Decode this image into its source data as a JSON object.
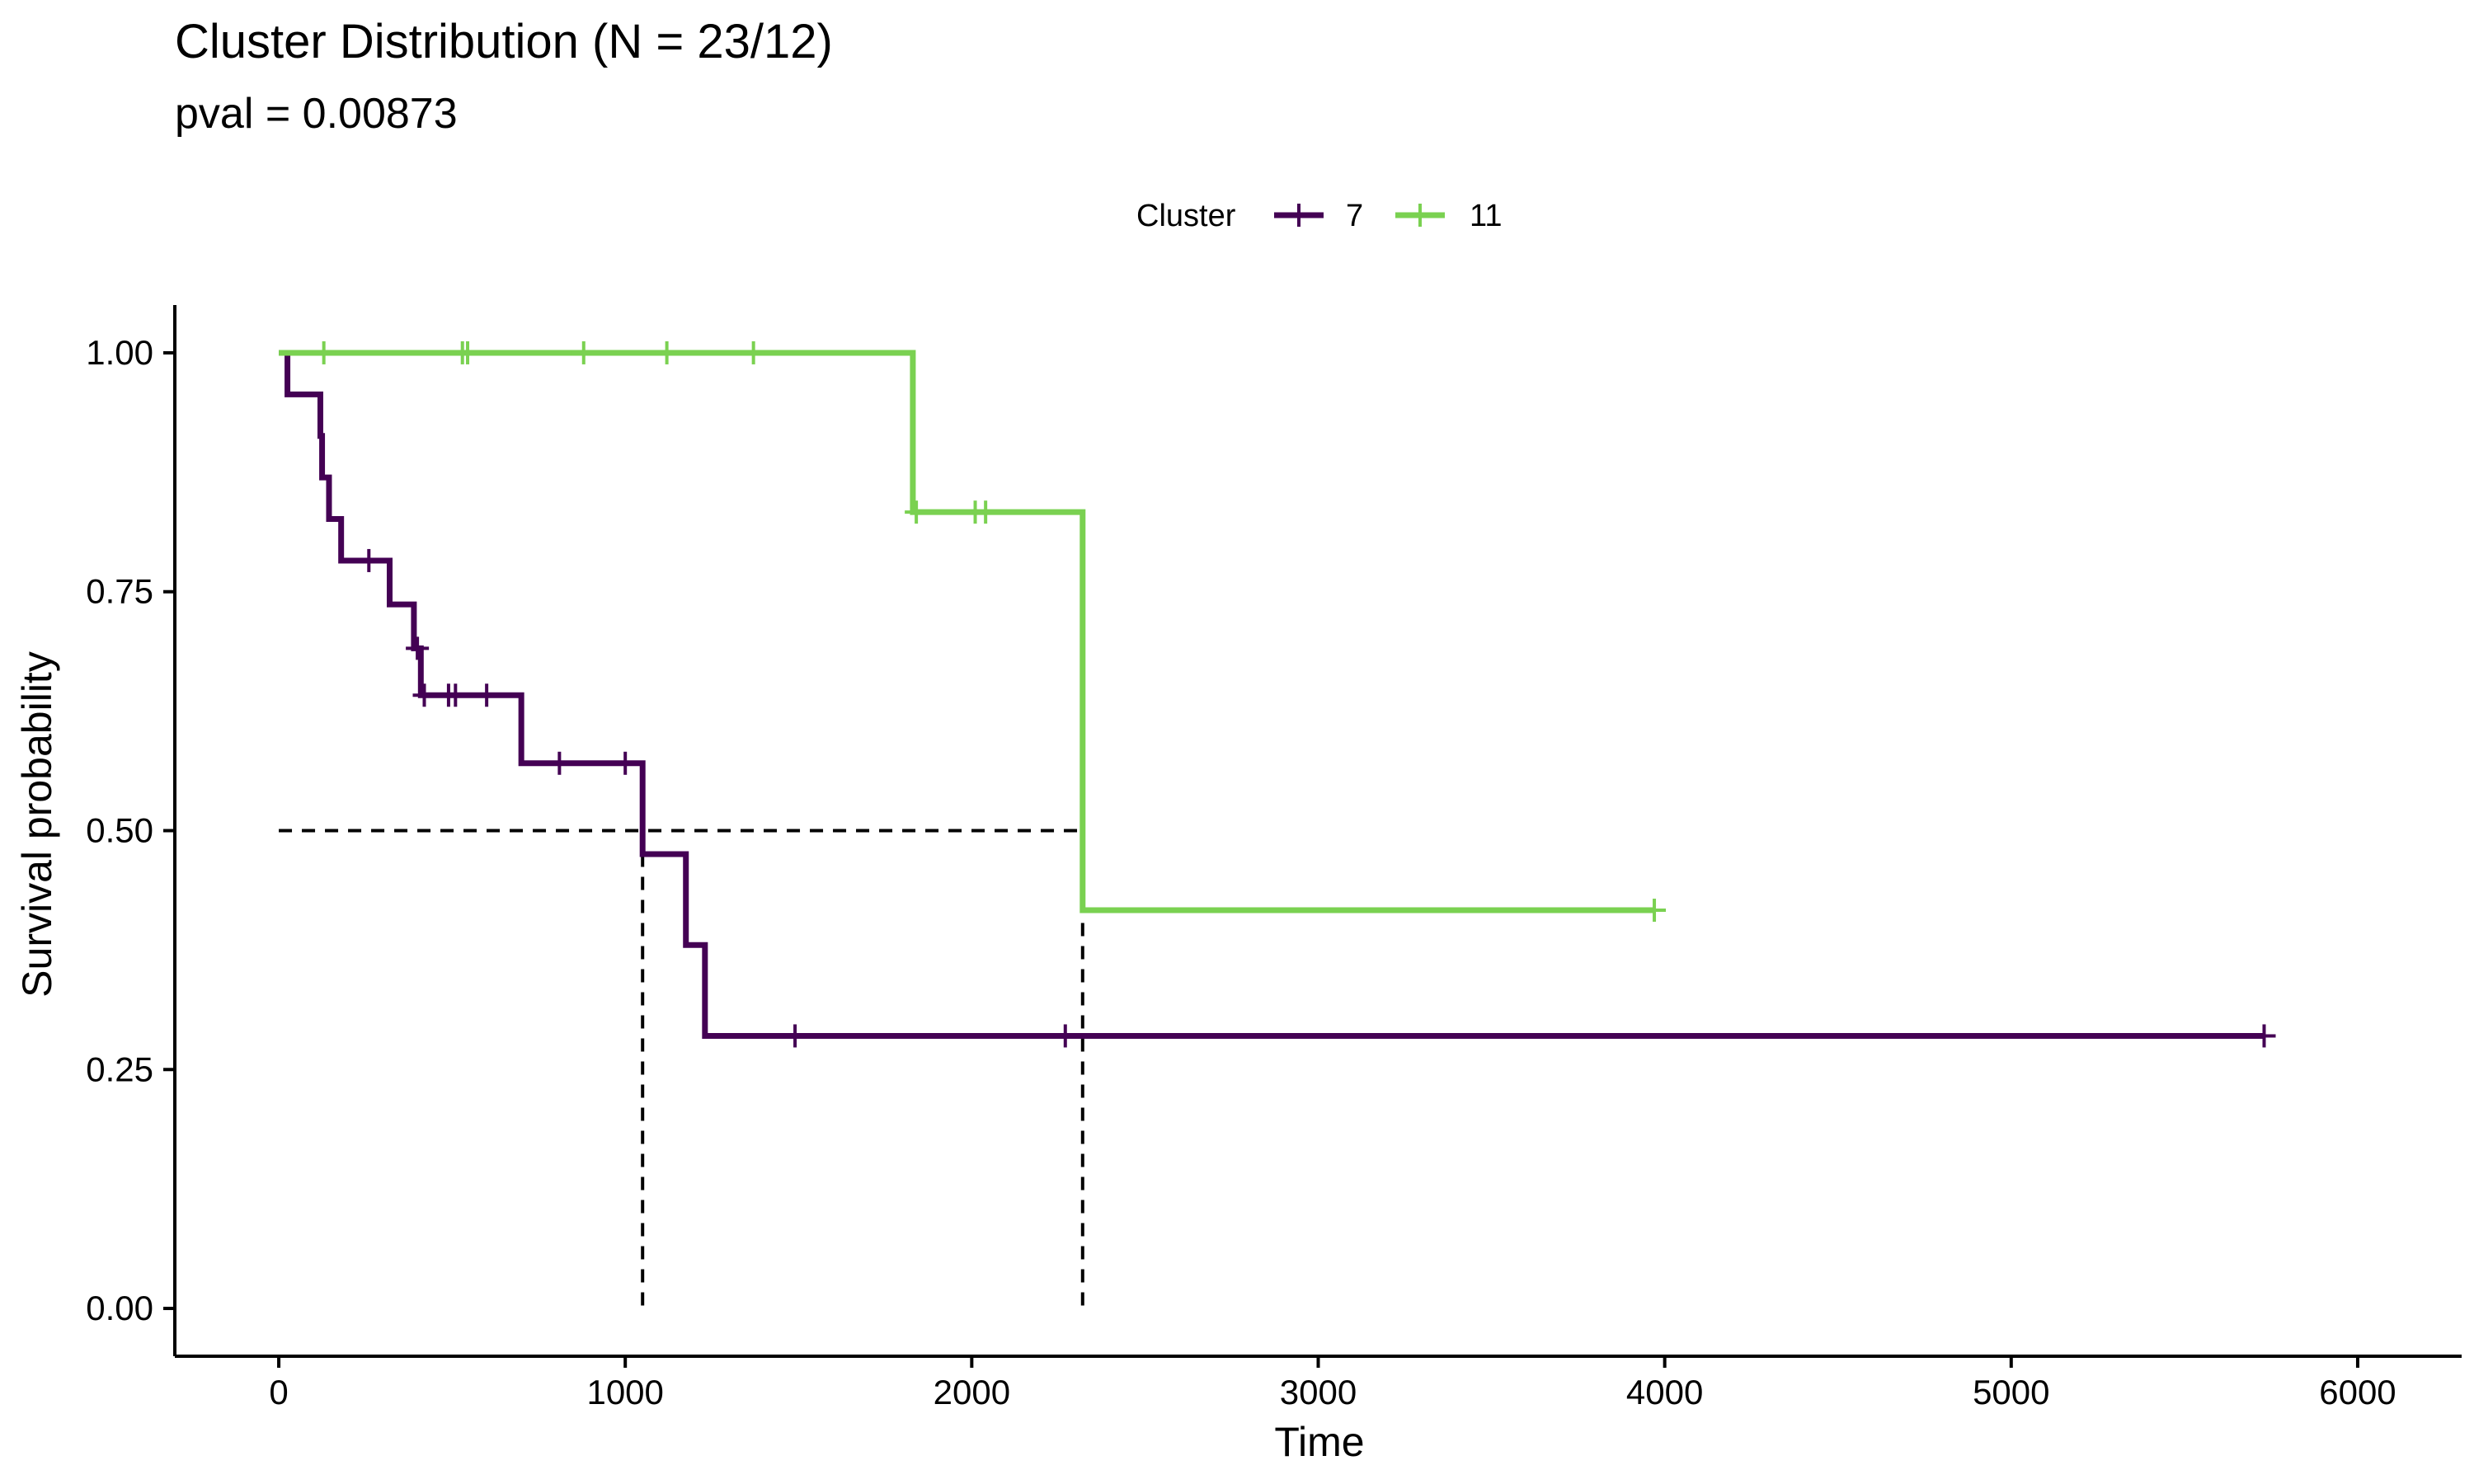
{
  "chart_data": {
    "type": "line",
    "subtype": "kaplan-meier",
    "title": "Cluster Distribution (N = 23/12)",
    "subtitle": "pval = 0.00873",
    "xlabel": "Time",
    "ylabel": "Survival probability",
    "xlim": [
      -300,
      6300
    ],
    "ylim": [
      -0.05,
      1.05
    ],
    "x_ticks": [
      0,
      1000,
      2000,
      3000,
      4000,
      5000,
      6000
    ],
    "x_tick_labels": [
      "0",
      "1000",
      "2000",
      "3000",
      "4000",
      "5000",
      "6000"
    ],
    "y_ticks": [
      0,
      0.25,
      0.5,
      0.75,
      1.0
    ],
    "y_tick_labels": [
      "0.00",
      "0.25",
      "0.50",
      "0.75",
      "1.00"
    ],
    "grid": false,
    "legend": {
      "title": "Cluster",
      "position": "top"
    },
    "series": [
      {
        "name": "7",
        "color": "#440154",
        "steps": [
          [
            0,
            1.0
          ],
          [
            25,
            0.9565
          ],
          [
            120,
            0.913
          ],
          [
            125,
            0.8696
          ],
          [
            145,
            0.8261
          ],
          [
            180,
            0.7826
          ],
          [
            320,
            0.7367
          ],
          [
            390,
            0.6908
          ],
          [
            410,
            0.6417
          ],
          [
            700,
            0.5705
          ],
          [
            1050,
            0.4754
          ],
          [
            1175,
            0.3803
          ],
          [
            1230,
            0.2852
          ],
          [
            5730,
            0.2852
          ]
        ],
        "censor_times": [
          260,
          400,
          420,
          490,
          510,
          600,
          810,
          1000,
          1490,
          2270,
          5730
        ]
      },
      {
        "name": "11",
        "color": "#7AD151",
        "steps": [
          [
            0,
            1.0
          ],
          [
            1830,
            0.8333
          ],
          [
            2320,
            0.4167
          ],
          [
            3970,
            0.4167
          ]
        ],
        "censor_times": [
          130,
          530,
          545,
          880,
          1120,
          1370,
          1840,
          2010,
          2040,
          3970
        ]
      }
    ],
    "median_lines": [
      {
        "y": 0.5,
        "x_end": 2320
      },
      {
        "x": 1050,
        "y": 0.5
      },
      {
        "x": 2320,
        "y": 0.5
      }
    ]
  }
}
